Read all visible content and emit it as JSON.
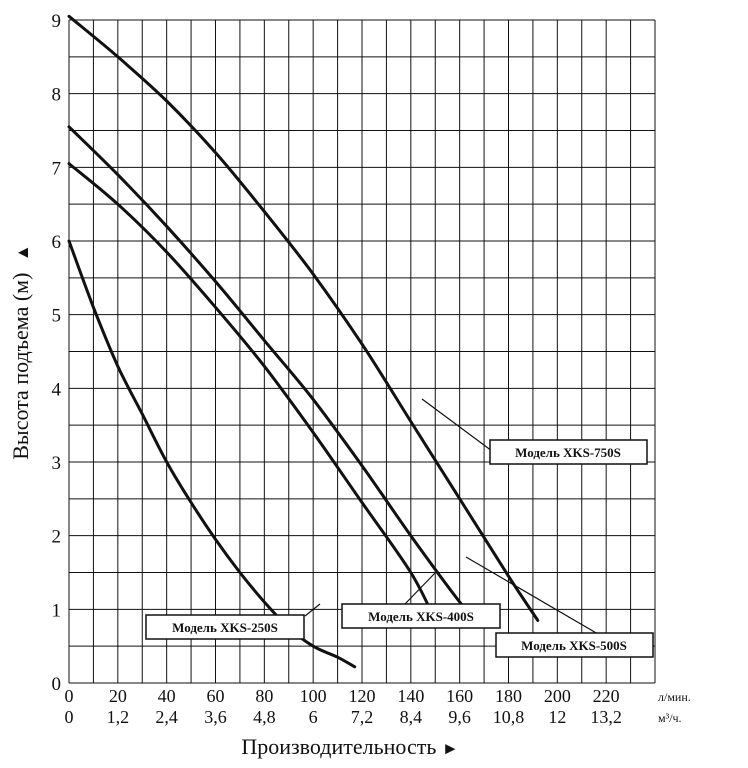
{
  "chart_data": {
    "type": "line",
    "title": "",
    "xlabel": "Производительность",
    "xlabel_arrow": "►",
    "ylabel": "Высота подъема (м)",
    "ylabel_arrow": "▲",
    "xlim": [
      0,
      240
    ],
    "ylim": [
      0,
      9
    ],
    "x_major_ticks": [
      0,
      20,
      40,
      60,
      80,
      100,
      120,
      140,
      160,
      180,
      200,
      220
    ],
    "x_major_labels": [
      "0",
      "20",
      "40",
      "60",
      "80",
      "100",
      "120",
      "140",
      "160",
      "180",
      "200",
      "220"
    ],
    "x_secondary_labels": [
      "0",
      "1,2",
      "2,4",
      "3,6",
      "4,8",
      "6",
      "7,2",
      "8,4",
      "9,6",
      "10,8",
      "12",
      "13,2"
    ],
    "x_unit_primary": "л/мин.",
    "x_unit_secondary": "м³/ч.",
    "y_ticks": [
      0,
      1,
      2,
      3,
      4,
      5,
      6,
      7,
      8,
      9
    ],
    "y_tick_labels": [
      "0",
      "1",
      "2",
      "3",
      "4",
      "5",
      "6",
      "7",
      "8",
      "9"
    ],
    "grid": true,
    "series": [
      {
        "name": "Модель XKS-250S",
        "x": [
          0,
          10,
          20,
          30,
          40,
          50,
          60,
          70,
          80,
          90,
          100,
          110,
          117
        ],
        "y": [
          6.0,
          5.1,
          4.3,
          3.65,
          3.0,
          2.45,
          1.95,
          1.5,
          1.1,
          0.75,
          0.5,
          0.35,
          0.22
        ]
      },
      {
        "name": "Модель XKS-400S",
        "x": [
          0,
          20,
          40,
          60,
          80,
          100,
          120,
          140,
          150
        ],
        "y": [
          7.05,
          6.5,
          5.85,
          5.1,
          4.3,
          3.4,
          2.45,
          1.5,
          0.85
        ]
      },
      {
        "name": "Модель XKS-500S",
        "x": [
          0,
          20,
          40,
          60,
          80,
          100,
          120,
          140,
          160,
          167
        ],
        "y": [
          7.55,
          6.9,
          6.2,
          5.45,
          4.65,
          3.85,
          2.95,
          2.0,
          1.1,
          0.85
        ]
      },
      {
        "name": "Модель XKS-750S",
        "x": [
          0,
          20,
          40,
          60,
          80,
          100,
          120,
          140,
          160,
          180,
          192
        ],
        "y": [
          9.05,
          8.5,
          7.9,
          7.2,
          6.4,
          5.55,
          4.6,
          3.55,
          2.5,
          1.45,
          0.85
        ]
      }
    ],
    "annotations": [
      {
        "label": "Модель XKS-750S",
        "series": "Модель XKS-750S"
      },
      {
        "label": "Модель XKS-400S",
        "series": "Модель XKS-400S"
      },
      {
        "label": "Модель XKS-250S",
        "series": "Модель XKS-250S"
      },
      {
        "label": "Модель XKS-500S",
        "series": "Модель XKS-500S"
      }
    ]
  }
}
